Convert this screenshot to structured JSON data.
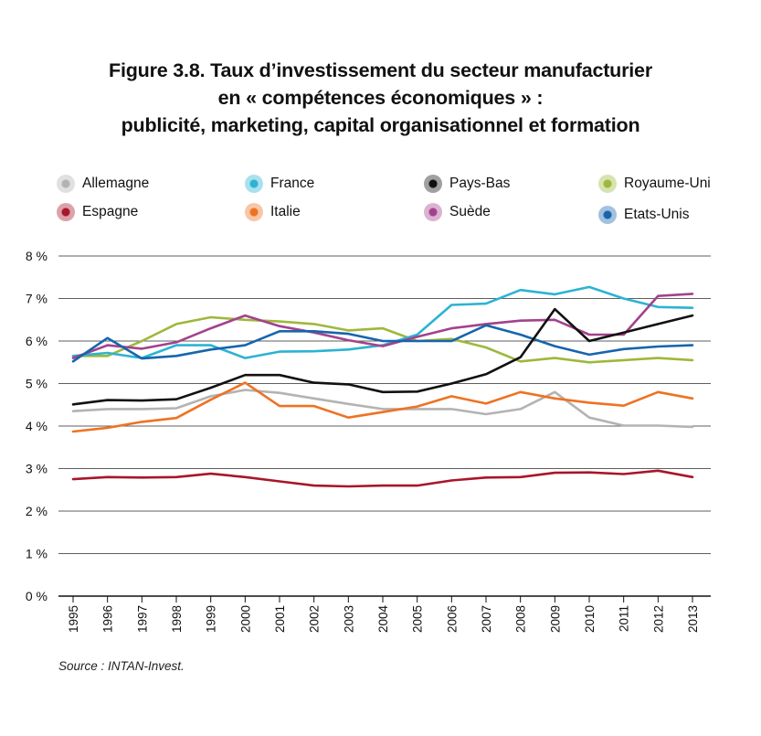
{
  "title": {
    "line1": "Figure 3.8. Taux d’investissement du secteur manufacturier",
    "line2": "en « compétences économiques » :",
    "line3": "publicité, marketing, capital organisationnel et formation"
  },
  "source": "Source : INTAN-Invest.",
  "chart_data": {
    "type": "line",
    "title": "Figure 3.8. Taux d’investissement du secteur manufacturier en « compétences économiques » : publicité, marketing, capital organisationnel et formation",
    "xlabel": "",
    "ylabel": "",
    "x": [
      "1995",
      "1996",
      "1997",
      "1998",
      "1999",
      "2000",
      "2001",
      "2002",
      "2003",
      "2004",
      "2005",
      "2006",
      "2007",
      "2008",
      "2009",
      "2010",
      "2011",
      "2012",
      "2013"
    ],
    "ylim": [
      0,
      8
    ],
    "yticks": [
      0,
      1,
      2,
      3,
      4,
      5,
      6,
      7,
      8
    ],
    "ytick_labels": [
      "0 %",
      "1 %",
      "2 %",
      "3 %",
      "4 %",
      "5 %",
      "6 %",
      "7 %",
      "8 %"
    ],
    "grid": "horizontal",
    "legend_position": "top",
    "series": [
      {
        "name": "Allemagne",
        "color": "#b3b3b3",
        "values": [
          4.35,
          4.4,
          4.4,
          4.42,
          4.7,
          4.85,
          4.78,
          4.65,
          4.52,
          4.4,
          4.4,
          4.4,
          4.28,
          4.4,
          4.8,
          4.2,
          4.01,
          4.01,
          3.98
        ]
      },
      {
        "name": "Espagne",
        "color": "#a8162a",
        "values": [
          2.75,
          2.8,
          2.79,
          2.8,
          2.88,
          2.8,
          2.7,
          2.6,
          2.58,
          2.6,
          2.6,
          2.72,
          2.79,
          2.8,
          2.9,
          2.91,
          2.87,
          2.95,
          2.8
        ]
      },
      {
        "name": "France",
        "color": "#2cb3d3",
        "values": [
          5.65,
          5.72,
          5.6,
          5.9,
          5.9,
          5.6,
          5.75,
          5.76,
          5.8,
          5.9,
          6.15,
          6.85,
          6.88,
          7.2,
          7.1,
          7.27,
          7.0,
          6.8,
          6.78
        ]
      },
      {
        "name": "Italie",
        "color": "#ee7223",
        "values": [
          3.87,
          3.96,
          4.1,
          4.19,
          4.62,
          5.02,
          4.47,
          4.47,
          4.2,
          4.33,
          4.46,
          4.7,
          4.53,
          4.8,
          4.65,
          4.55,
          4.48,
          4.8,
          4.65
        ]
      },
      {
        "name": "Pays-Bas",
        "color": "#111111",
        "values": [
          4.51,
          4.61,
          4.6,
          4.63,
          4.9,
          5.2,
          5.2,
          5.02,
          4.98,
          4.8,
          4.81,
          5.0,
          5.22,
          5.62,
          6.75,
          6.0,
          6.2,
          6.4,
          6.6
        ]
      },
      {
        "name": "Suède",
        "color": "#a3428c",
        "values": [
          5.6,
          5.9,
          5.82,
          5.97,
          6.3,
          6.6,
          6.35,
          6.2,
          6.02,
          5.88,
          6.1,
          6.3,
          6.4,
          6.48,
          6.5,
          6.15,
          6.15,
          7.06,
          7.11
        ]
      },
      {
        "name": "Royaume-Uni",
        "color": "#9eb83b",
        "values": [
          5.65,
          5.65,
          6.0,
          6.4,
          6.56,
          6.5,
          6.46,
          6.4,
          6.25,
          6.3,
          6.0,
          6.05,
          5.85,
          5.52,
          5.6,
          5.5,
          5.55,
          5.6,
          5.55
        ]
      },
      {
        "name": "Etats-Unis",
        "color": "#1665ad",
        "values": [
          5.52,
          6.07,
          5.59,
          5.65,
          5.8,
          5.9,
          6.23,
          6.23,
          6.17,
          6.0,
          6.0,
          6.0,
          6.37,
          6.15,
          5.88,
          5.68,
          5.81,
          5.87,
          5.9
        ]
      }
    ]
  }
}
